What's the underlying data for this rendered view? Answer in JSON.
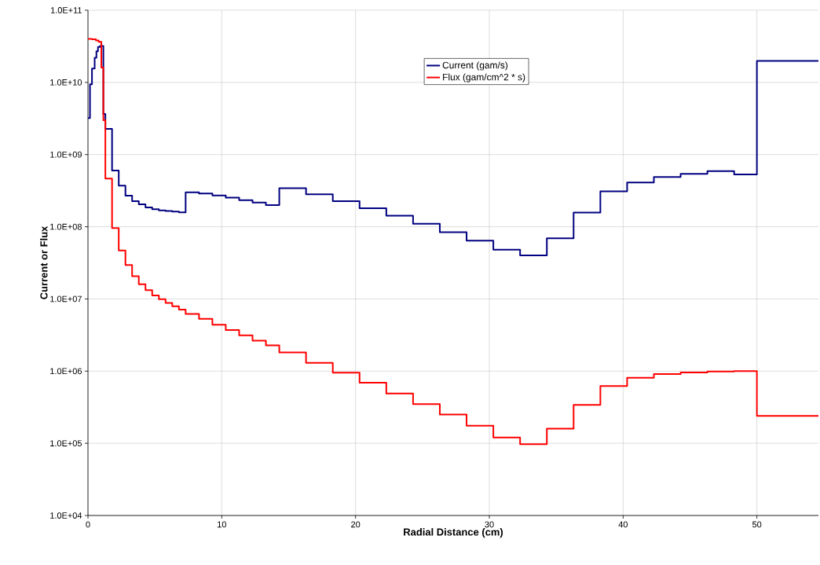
{
  "chart_data": {
    "type": "step",
    "xlabel": "Radial Distance (cm)",
    "ylabel": "Current or Flux",
    "log": "y",
    "grid": true,
    "legend": "top",
    "line_style": "solid",
    "marker": "none",
    "xlim": [
      0,
      54.6
    ],
    "ylim": [
      10000,
      100000000000
    ],
    "xticks": [
      0,
      10,
      20,
      30,
      40,
      50
    ],
    "yticks": [
      {
        "value": 10000,
        "label": "1.0E+04"
      },
      {
        "value": 100000,
        "label": "1.0E+05"
      },
      {
        "value": 1000000,
        "label": "1.0E+06"
      },
      {
        "value": 10000000,
        "label": "1.0E+07"
      },
      {
        "value": 100000000,
        "label": "1.0E+08"
      },
      {
        "value": 1000000000,
        "label": "1.0E+09"
      },
      {
        "value": 10000000000,
        "label": "1.0E+10"
      },
      {
        "value": 100000000000,
        "label": "1.0E+11"
      }
    ],
    "series": [
      {
        "name": "Current (gam/s)",
        "color": "#000080",
        "x": [
          0,
          0.15,
          0.3,
          0.5,
          0.63,
          0.75,
          0.9,
          1.15,
          1.3,
          1.8,
          2.3,
          2.8,
          3.3,
          3.8,
          4.3,
          4.8,
          5.3,
          5.8,
          6.3,
          6.8,
          7.3,
          8.3,
          9.3,
          10.3,
          11.3,
          12.3,
          13.3,
          14.3,
          16.3,
          18.3,
          20.3,
          22.3,
          24.3,
          26.3,
          28.3,
          30.3,
          32.3,
          34.3,
          36.3,
          38.3,
          40.3,
          42.3,
          44.3,
          46.3,
          48.3,
          50,
          54.6
        ],
        "values": [
          3200000000.0,
          9400000000.0,
          15500000000.0,
          22000000000.0,
          27000000000.0,
          31000000000.0,
          32000000000.0,
          3660000000.0,
          2270000000.0,
          600000000.0,
          370000000.0,
          270000000.0,
          226000000.0,
          205000000.0,
          185000000.0,
          175000000.0,
          169000000.0,
          165000000.0,
          162000000.0,
          158000000.0,
          300000000.0,
          288000000.0,
          272000000.0,
          254000000.0,
          234000000.0,
          217000000.0,
          200000000.0,
          343000000.0,
          281000000.0,
          226000000.0,
          181000000.0,
          142000000.0,
          110000000.0,
          84000000.0,
          64000000.0,
          48000000.0,
          40000000.0,
          69000000.0,
          157000000.0,
          310000000.0,
          410000000.0,
          490000000.0,
          540000000.0,
          590000000.0,
          530000000.0,
          19800000000.0,
          19800000000.0
        ]
      },
      {
        "name": "Flux (gam/cm^2 * s)",
        "color": "#ff0000",
        "x": [
          0,
          0.3,
          0.6,
          0.8,
          1.0,
          1.15,
          1.3,
          1.8,
          2.3,
          2.8,
          3.3,
          3.8,
          4.3,
          4.8,
          5.3,
          5.8,
          6.3,
          6.8,
          7.3,
          8.3,
          9.3,
          10.3,
          11.3,
          12.3,
          13.3,
          14.3,
          16.3,
          18.3,
          20.3,
          22.3,
          24.3,
          26.3,
          28.3,
          30.3,
          32.3,
          34.3,
          36.3,
          38.3,
          40.3,
          42.3,
          44.3,
          46.3,
          48.3,
          50,
          54.6
        ],
        "values": [
          40000000000.0,
          39500000000.0,
          38000000000.0,
          36500000000.0,
          16000000000.0,
          3000000000.0,
          465000000.0,
          96000000.0,
          47000000.0,
          29500000.0,
          20600000.0,
          16000000.0,
          13200000.0,
          11200000.0,
          9900000.0,
          8800000.0,
          7900000.0,
          7100000.0,
          6200000.0,
          5300000.0,
          4400000.0,
          3700000.0,
          3140000.0,
          2650000.0,
          2280000.0,
          1820000.0,
          1300000.0,
          950000.0,
          690000.0,
          490000.0,
          350000.0,
          250000.0,
          175000.0,
          120000.0,
          97000.0,
          160000.0,
          340000.0,
          620000.0,
          810000.0,
          910000.0,
          960000.0,
          990000.0,
          1000000.0,
          240000.0,
          240000.0
        ]
      }
    ]
  }
}
